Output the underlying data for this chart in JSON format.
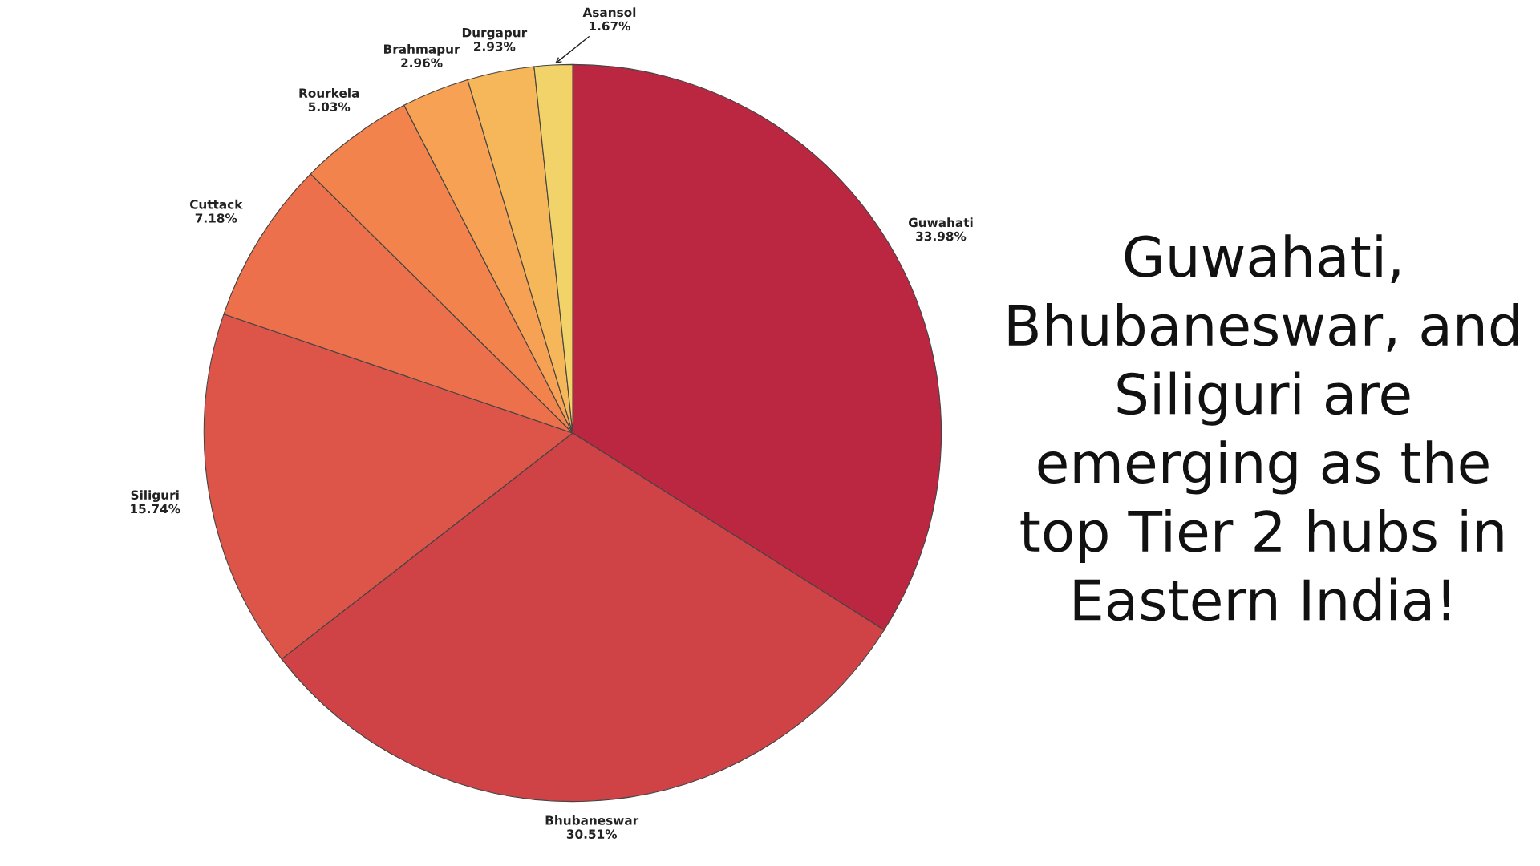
{
  "chart_data": {
    "type": "pie",
    "categories": [
      "Guwahati",
      "Bhubaneswar",
      "Siliguri",
      "Cuttack",
      "Rourkela",
      "Brahmapur",
      "Durgapur",
      "Asansol"
    ],
    "values": [
      33.98,
      30.51,
      15.74,
      7.18,
      5.03,
      2.96,
      2.93,
      1.67
    ],
    "value_labels": [
      "33.98%",
      "30.51%",
      "15.74%",
      "7.18%",
      "5.03%",
      "2.96%",
      "2.93%",
      "1.67%"
    ],
    "colors": [
      "#bb2640",
      "#cf4347",
      "#dd5549",
      "#eb704b",
      "#f3834d",
      "#f7a154",
      "#f6b65a",
      "#f2d36a"
    ],
    "annotations": [
      "Guwahati, Bhubaneswar, and Siliguri are emerging as the top Tier 2 hubs in Eastern India!"
    ],
    "legend": false
  }
}
